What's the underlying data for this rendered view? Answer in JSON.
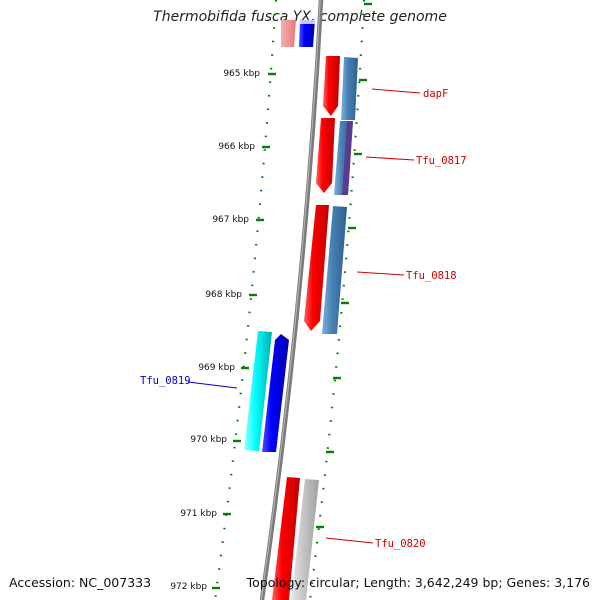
{
  "title": "Thermobifida fusca YX, complete genome",
  "footer": {
    "accession_label": "Accession: NC_007333",
    "topology_label": "Topology: circular",
    "length_label": "Length: 3,642,249 bp",
    "genes_label": "Genes: 3,176",
    "separator": "; "
  },
  "colors": {
    "backbone": "#808080",
    "forward_cds": "#ff0000",
    "reverse_cds": "#0000ff",
    "reverse_gene": "#00e5e5",
    "forward_gene_feature": "#4682b4",
    "overlap_feature": "#5b2c8f",
    "faded_cds": "#c0c0c0",
    "tick": "#008000",
    "forward_label": "#cc0000",
    "reverse_label": "#0000cc"
  },
  "axis": {
    "unit": "kbp",
    "ticks": [
      {
        "label": "965 kbp"
      },
      {
        "label": "966 kbp"
      },
      {
        "label": "967 kbp"
      },
      {
        "label": "968 kbp"
      },
      {
        "label": "969 kbp"
      },
      {
        "label": "970 kbp"
      },
      {
        "label": "971 kbp"
      },
      {
        "label": "972 kbp"
      }
    ]
  },
  "features": [
    {
      "name": "dapF",
      "strand": "forward"
    },
    {
      "name": "Tfu_0817",
      "strand": "forward"
    },
    {
      "name": "Tfu_0818",
      "strand": "forward"
    },
    {
      "name": "Tfu_0819",
      "strand": "reverse"
    },
    {
      "name": "Tfu_0820",
      "strand": "forward"
    }
  ]
}
